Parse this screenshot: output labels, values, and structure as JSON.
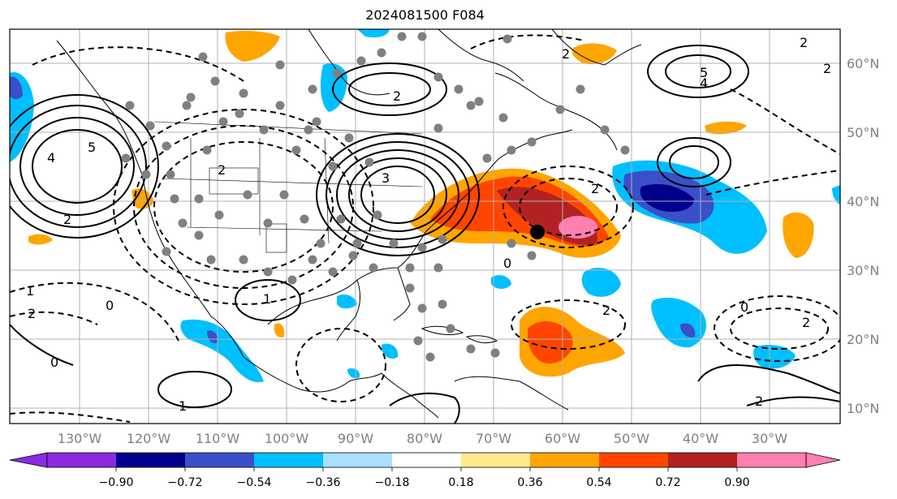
{
  "title": "2024081500 F084",
  "map": {
    "lon_labels": [
      "130°W",
      "120°W",
      "110°W",
      "100°W",
      "90°W",
      "80°W",
      "70°W",
      "60°W",
      "50°W",
      "40°W",
      "30°W"
    ],
    "lat_labels": [
      "60°N",
      "50°N",
      "40°N",
      "30°N",
      "20°N",
      "10°N"
    ],
    "contour_labels": [
      "5",
      "4",
      "2",
      "2",
      "3",
      "2",
      "5",
      "4",
      "2",
      "2",
      "2",
      "1",
      "0",
      "2",
      "2",
      "0",
      "0",
      "2",
      "0",
      "1",
      "2",
      "1",
      "2"
    ]
  },
  "colorbar": {
    "ticks": [
      "−0.90",
      "−0.72",
      "−0.54",
      "−0.36",
      "−0.18",
      "0.18",
      "0.36",
      "0.54",
      "0.72",
      "0.90"
    ],
    "colors": [
      "#8a2be2",
      "#00008b",
      "#3a50c8",
      "#00bfff",
      "#aadfff",
      "#ffffff",
      "#ffe98a",
      "#ffa500",
      "#ff4500",
      "#b22222",
      "#ff7fb0"
    ]
  },
  "colors": {
    "land_border": "#000000",
    "grid": "#b0b0b0",
    "station_dot": "#808080"
  }
}
